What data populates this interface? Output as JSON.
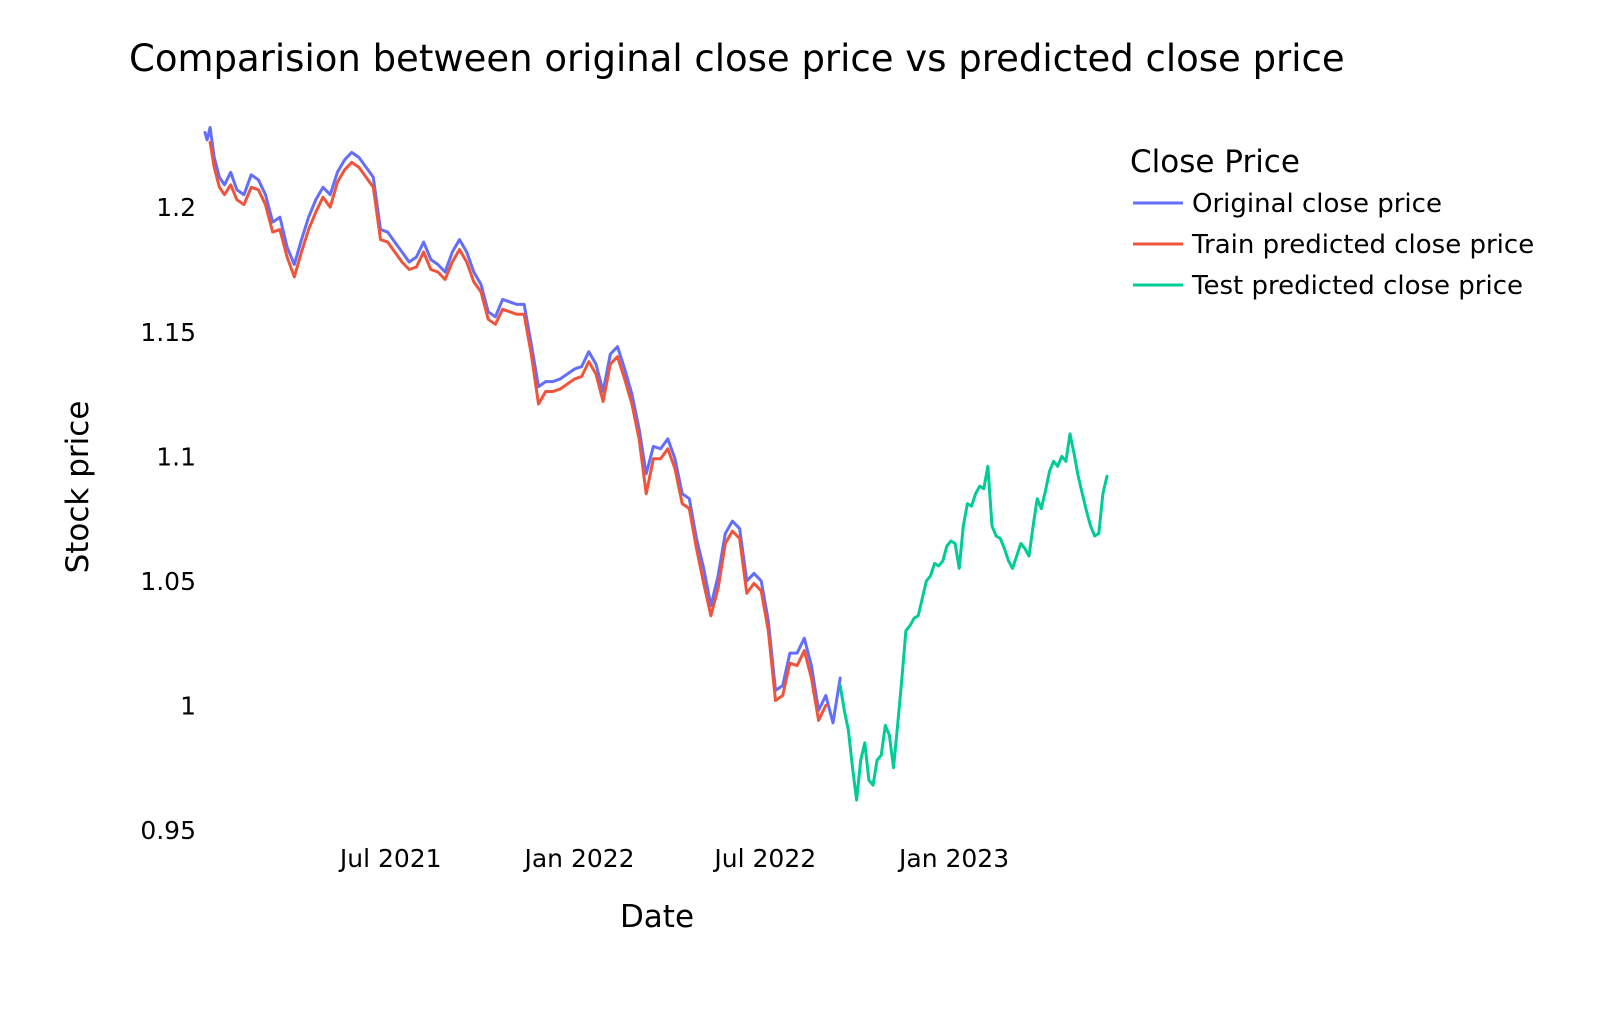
{
  "chart_data": {
    "type": "line",
    "title": "Comparision between original close price vs predicted close price",
    "xlabel": "Date",
    "ylabel": "Stock price",
    "x_range": [
      "2021-01-01",
      "2023-05-31"
    ],
    "ylim": [
      0.95,
      1.235
    ],
    "x_ticks": [
      {
        "label": "Jul 2021",
        "date": "2021-07-01"
      },
      {
        "label": "Jan 2022",
        "date": "2022-01-01"
      },
      {
        "label": "Jul 2022",
        "date": "2022-07-01"
      },
      {
        "label": "Jan 2023",
        "date": "2023-01-01"
      }
    ],
    "y_ticks": [
      {
        "label": "0.95",
        "value": 0.95
      },
      {
        "label": "1",
        "value": 1.0
      },
      {
        "label": "1.05",
        "value": 1.05
      },
      {
        "label": "1.1",
        "value": 1.1
      },
      {
        "label": "1.15",
        "value": 1.15
      },
      {
        "label": "1.2",
        "value": 1.2
      }
    ],
    "grid": false,
    "legend": {
      "title": "Close Price",
      "position": "top-right"
    },
    "series": [
      {
        "name": "Original close price",
        "color": "#636efa",
        "points": [
          [
            "2021-01-01",
            1.23
          ],
          [
            "2021-01-03",
            1.227
          ],
          [
            "2021-01-06",
            1.232
          ],
          [
            "2021-01-10",
            1.22
          ],
          [
            "2021-01-15",
            1.212
          ],
          [
            "2021-01-20",
            1.209
          ],
          [
            "2021-01-26",
            1.214
          ],
          [
            "2021-02-01",
            1.207
          ],
          [
            "2021-02-08",
            1.205
          ],
          [
            "2021-02-15",
            1.213
          ],
          [
            "2021-02-22",
            1.211
          ],
          [
            "2021-03-01",
            1.205
          ],
          [
            "2021-03-08",
            1.194
          ],
          [
            "2021-03-15",
            1.196
          ],
          [
            "2021-03-22",
            1.184
          ],
          [
            "2021-03-29",
            1.177
          ],
          [
            "2021-04-05",
            1.187
          ],
          [
            "2021-04-12",
            1.196
          ],
          [
            "2021-04-19",
            1.203
          ],
          [
            "2021-04-26",
            1.208
          ],
          [
            "2021-05-03",
            1.205
          ],
          [
            "2021-05-10",
            1.214
          ],
          [
            "2021-05-17",
            1.219
          ],
          [
            "2021-05-24",
            1.222
          ],
          [
            "2021-05-31",
            1.22
          ],
          [
            "2021-06-07",
            1.216
          ],
          [
            "2021-06-14",
            1.212
          ],
          [
            "2021-06-21",
            1.191
          ],
          [
            "2021-06-28",
            1.19
          ],
          [
            "2021-07-05",
            1.186
          ],
          [
            "2021-07-12",
            1.182
          ],
          [
            "2021-07-19",
            1.178
          ],
          [
            "2021-07-26",
            1.18
          ],
          [
            "2021-08-02",
            1.186
          ],
          [
            "2021-08-09",
            1.179
          ],
          [
            "2021-08-16",
            1.177
          ],
          [
            "2021-08-23",
            1.174
          ],
          [
            "2021-08-30",
            1.182
          ],
          [
            "2021-09-06",
            1.187
          ],
          [
            "2021-09-13",
            1.182
          ],
          [
            "2021-09-20",
            1.174
          ],
          [
            "2021-09-27",
            1.169
          ],
          [
            "2021-10-04",
            1.158
          ],
          [
            "2021-10-11",
            1.156
          ],
          [
            "2021-10-18",
            1.163
          ],
          [
            "2021-10-25",
            1.162
          ],
          [
            "2021-11-01",
            1.161
          ],
          [
            "2021-11-08",
            1.161
          ],
          [
            "2021-11-15",
            1.145
          ],
          [
            "2021-11-22",
            1.128
          ],
          [
            "2021-11-29",
            1.13
          ],
          [
            "2021-12-06",
            1.13
          ],
          [
            "2021-12-13",
            1.131
          ],
          [
            "2021-12-20",
            1.133
          ],
          [
            "2021-12-27",
            1.135
          ],
          [
            "2022-01-03",
            1.136
          ],
          [
            "2022-01-10",
            1.142
          ],
          [
            "2022-01-17",
            1.137
          ],
          [
            "2022-01-24",
            1.126
          ],
          [
            "2022-01-31",
            1.141
          ],
          [
            "2022-02-07",
            1.144
          ],
          [
            "2022-02-14",
            1.135
          ],
          [
            "2022-02-21",
            1.125
          ],
          [
            "2022-02-28",
            1.111
          ],
          [
            "2022-03-07",
            1.093
          ],
          [
            "2022-03-14",
            1.104
          ],
          [
            "2022-03-21",
            1.103
          ],
          [
            "2022-03-28",
            1.107
          ],
          [
            "2022-04-04",
            1.099
          ],
          [
            "2022-04-11",
            1.085
          ],
          [
            "2022-04-18",
            1.083
          ],
          [
            "2022-04-25",
            1.067
          ],
          [
            "2022-05-02",
            1.055
          ],
          [
            "2022-05-09",
            1.04
          ],
          [
            "2022-05-16",
            1.052
          ],
          [
            "2022-05-23",
            1.069
          ],
          [
            "2022-05-30",
            1.074
          ],
          [
            "2022-06-06",
            1.071
          ],
          [
            "2022-06-13",
            1.05
          ],
          [
            "2022-06-20",
            1.053
          ],
          [
            "2022-06-27",
            1.05
          ],
          [
            "2022-07-04",
            1.034
          ],
          [
            "2022-07-11",
            1.006
          ],
          [
            "2022-07-18",
            1.008
          ],
          [
            "2022-07-25",
            1.021
          ],
          [
            "2022-08-01",
            1.021
          ],
          [
            "2022-08-08",
            1.027
          ],
          [
            "2022-08-15",
            1.016
          ],
          [
            "2022-08-22",
            0.998
          ],
          [
            "2022-08-29",
            1.004
          ],
          [
            "2022-09-05",
            0.993
          ],
          [
            "2022-09-12",
            1.011
          ]
        ]
      },
      {
        "name": "Train predicted close price",
        "color": "#ef553b",
        "points": [
          [
            "2021-01-06",
            1.226
          ],
          [
            "2021-01-10",
            1.216
          ],
          [
            "2021-01-15",
            1.208
          ],
          [
            "2021-01-20",
            1.205
          ],
          [
            "2021-01-26",
            1.209
          ],
          [
            "2021-02-01",
            1.203
          ],
          [
            "2021-02-08",
            1.201
          ],
          [
            "2021-02-15",
            1.208
          ],
          [
            "2021-02-22",
            1.207
          ],
          [
            "2021-03-01",
            1.201
          ],
          [
            "2021-03-08",
            1.19
          ],
          [
            "2021-03-15",
            1.191
          ],
          [
            "2021-03-22",
            1.18
          ],
          [
            "2021-03-29",
            1.172
          ],
          [
            "2021-04-05",
            1.182
          ],
          [
            "2021-04-12",
            1.191
          ],
          [
            "2021-04-19",
            1.198
          ],
          [
            "2021-04-26",
            1.204
          ],
          [
            "2021-05-03",
            1.2
          ],
          [
            "2021-05-10",
            1.21
          ],
          [
            "2021-05-17",
            1.215
          ],
          [
            "2021-05-24",
            1.218
          ],
          [
            "2021-05-31",
            1.216
          ],
          [
            "2021-06-07",
            1.212
          ],
          [
            "2021-06-14",
            1.208
          ],
          [
            "2021-06-21",
            1.187
          ],
          [
            "2021-06-28",
            1.186
          ],
          [
            "2021-07-05",
            1.182
          ],
          [
            "2021-07-12",
            1.178
          ],
          [
            "2021-07-19",
            1.175
          ],
          [
            "2021-07-26",
            1.176
          ],
          [
            "2021-08-02",
            1.182
          ],
          [
            "2021-08-09",
            1.175
          ],
          [
            "2021-08-16",
            1.174
          ],
          [
            "2021-08-23",
            1.171
          ],
          [
            "2021-08-30",
            1.178
          ],
          [
            "2021-09-06",
            1.183
          ],
          [
            "2021-09-13",
            1.178
          ],
          [
            "2021-09-20",
            1.17
          ],
          [
            "2021-09-27",
            1.166
          ],
          [
            "2021-10-04",
            1.155
          ],
          [
            "2021-10-11",
            1.153
          ],
          [
            "2021-10-18",
            1.159
          ],
          [
            "2021-10-25",
            1.158
          ],
          [
            "2021-11-01",
            1.157
          ],
          [
            "2021-11-08",
            1.157
          ],
          [
            "2021-11-15",
            1.141
          ],
          [
            "2021-11-22",
            1.121
          ],
          [
            "2021-11-29",
            1.126
          ],
          [
            "2021-12-06",
            1.126
          ],
          [
            "2021-12-13",
            1.127
          ],
          [
            "2021-12-20",
            1.129
          ],
          [
            "2021-12-27",
            1.131
          ],
          [
            "2022-01-03",
            1.132
          ],
          [
            "2022-01-10",
            1.138
          ],
          [
            "2022-01-17",
            1.133
          ],
          [
            "2022-01-24",
            1.122
          ],
          [
            "2022-01-31",
            1.137
          ],
          [
            "2022-02-07",
            1.14
          ],
          [
            "2022-02-14",
            1.131
          ],
          [
            "2022-02-21",
            1.121
          ],
          [
            "2022-02-28",
            1.107
          ],
          [
            "2022-03-07",
            1.085
          ],
          [
            "2022-03-14",
            1.099
          ],
          [
            "2022-03-21",
            1.099
          ],
          [
            "2022-03-28",
            1.103
          ],
          [
            "2022-04-04",
            1.095
          ],
          [
            "2022-04-11",
            1.081
          ],
          [
            "2022-04-18",
            1.079
          ],
          [
            "2022-04-25",
            1.063
          ],
          [
            "2022-05-02",
            1.049
          ],
          [
            "2022-05-09",
            1.036
          ],
          [
            "2022-05-16",
            1.047
          ],
          [
            "2022-05-23",
            1.065
          ],
          [
            "2022-05-30",
            1.07
          ],
          [
            "2022-06-06",
            1.067
          ],
          [
            "2022-06-13",
            1.045
          ],
          [
            "2022-06-20",
            1.049
          ],
          [
            "2022-06-27",
            1.046
          ],
          [
            "2022-07-04",
            1.03
          ],
          [
            "2022-07-11",
            1.002
          ],
          [
            "2022-07-18",
            1.004
          ],
          [
            "2022-07-25",
            1.017
          ],
          [
            "2022-08-01",
            1.016
          ],
          [
            "2022-08-08",
            1.022
          ],
          [
            "2022-08-15",
            1.011
          ],
          [
            "2022-08-22",
            0.994
          ],
          [
            "2022-08-29",
            1.0
          ]
        ]
      },
      {
        "name": "Test predicted close price",
        "color": "#00cc96",
        "points": [
          [
            "2022-09-12",
            1.008
          ],
          [
            "2022-09-16",
            0.998
          ],
          [
            "2022-09-20",
            0.99
          ],
          [
            "2022-09-24",
            0.975
          ],
          [
            "2022-09-28",
            0.962
          ],
          [
            "2022-10-02",
            0.978
          ],
          [
            "2022-10-06",
            0.985
          ],
          [
            "2022-10-10",
            0.97
          ],
          [
            "2022-10-14",
            0.968
          ],
          [
            "2022-10-18",
            0.978
          ],
          [
            "2022-10-22",
            0.98
          ],
          [
            "2022-10-26",
            0.992
          ],
          [
            "2022-10-30",
            0.988
          ],
          [
            "2022-11-03",
            0.975
          ],
          [
            "2022-11-07",
            0.992
          ],
          [
            "2022-11-11",
            1.01
          ],
          [
            "2022-11-15",
            1.03
          ],
          [
            "2022-11-19",
            1.032
          ],
          [
            "2022-11-23",
            1.035
          ],
          [
            "2022-11-27",
            1.036
          ],
          [
            "2022-12-01",
            1.043
          ],
          [
            "2022-12-05",
            1.05
          ],
          [
            "2022-12-09",
            1.052
          ],
          [
            "2022-12-13",
            1.057
          ],
          [
            "2022-12-17",
            1.056
          ],
          [
            "2022-12-21",
            1.058
          ],
          [
            "2022-12-25",
            1.064
          ],
          [
            "2022-12-29",
            1.066
          ],
          [
            "2023-01-02",
            1.065
          ],
          [
            "2023-01-06",
            1.055
          ],
          [
            "2023-01-10",
            1.072
          ],
          [
            "2023-01-14",
            1.081
          ],
          [
            "2023-01-18",
            1.08
          ],
          [
            "2023-01-22",
            1.085
          ],
          [
            "2023-01-26",
            1.088
          ],
          [
            "2023-01-30",
            1.087
          ],
          [
            "2023-02-03",
            1.096
          ],
          [
            "2023-02-07",
            1.072
          ],
          [
            "2023-02-11",
            1.068
          ],
          [
            "2023-02-15",
            1.067
          ],
          [
            "2023-02-19",
            1.063
          ],
          [
            "2023-02-23",
            1.058
          ],
          [
            "2023-02-27",
            1.055
          ],
          [
            "2023-03-03",
            1.06
          ],
          [
            "2023-03-07",
            1.065
          ],
          [
            "2023-03-11",
            1.063
          ],
          [
            "2023-03-15",
            1.06
          ],
          [
            "2023-03-19",
            1.072
          ],
          [
            "2023-03-23",
            1.083
          ],
          [
            "2023-03-27",
            1.079
          ],
          [
            "2023-03-31",
            1.086
          ],
          [
            "2023-04-04",
            1.094
          ],
          [
            "2023-04-08",
            1.098
          ],
          [
            "2023-04-12",
            1.096
          ],
          [
            "2023-04-16",
            1.1
          ],
          [
            "2023-04-20",
            1.098
          ],
          [
            "2023-04-24",
            1.109
          ],
          [
            "2023-04-28",
            1.101
          ],
          [
            "2023-05-02",
            1.092
          ],
          [
            "2023-05-06",
            1.085
          ],
          [
            "2023-05-10",
            1.078
          ],
          [
            "2023-05-14",
            1.072
          ],
          [
            "2023-05-18",
            1.068
          ],
          [
            "2023-05-22",
            1.069
          ],
          [
            "2023-05-26",
            1.085
          ],
          [
            "2023-05-30",
            1.092
          ]
        ]
      }
    ]
  }
}
